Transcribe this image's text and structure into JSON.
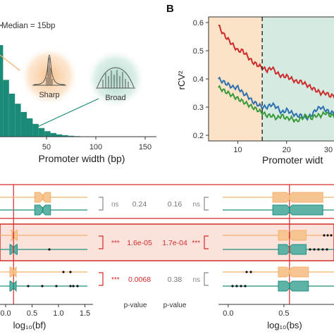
{
  "panels": {
    "b_label": "B"
  },
  "chart_data": [
    {
      "id": "promoter-width-histogram",
      "type": "bar",
      "xlabel": "Promoter width (bp)",
      "ylabel": "",
      "x_ticks": [
        "50",
        "100",
        "150"
      ],
      "xlim": [
        0,
        160
      ],
      "legend_text": "Median = 15bp",
      "annotations": [
        "Sharp",
        "Broad"
      ],
      "bins": [
        {
          "x": 0,
          "value": 1.0
        },
        {
          "x": 6,
          "value": 0.62
        },
        {
          "x": 12,
          "value": 0.47
        },
        {
          "x": 18,
          "value": 0.36
        },
        {
          "x": 24,
          "value": 0.27
        },
        {
          "x": 30,
          "value": 0.2
        },
        {
          "x": 36,
          "value": 0.14
        },
        {
          "x": 42,
          "value": 0.095
        },
        {
          "x": 48,
          "value": 0.06
        },
        {
          "x": 54,
          "value": 0.04
        },
        {
          "x": 60,
          "value": 0.025
        },
        {
          "x": 66,
          "value": 0.017
        },
        {
          "x": 72,
          "value": 0.01
        },
        {
          "x": 78,
          "value": 0.006
        },
        {
          "x": 84,
          "value": 0.004
        },
        {
          "x": 90,
          "value": 0.003
        },
        {
          "x": 96,
          "value": 0.002
        }
      ],
      "bar_color": "#1b8b78"
    },
    {
      "id": "rcv2-line",
      "type": "line",
      "xlabel": "Promoter widt",
      "ylabel": "rCV²",
      "x_ticks": [
        "10",
        "20",
        "30"
      ],
      "y_ticks": [
        "0.2",
        "0.3",
        "0.4",
        "0.5",
        "0.6"
      ],
      "xlim": [
        4,
        30
      ],
      "ylim": [
        0.18,
        0.62
      ],
      "threshold_x": 15,
      "regions": [
        {
          "from": 4,
          "to": 15,
          "color": "#fbe3c8"
        },
        {
          "from": 15,
          "to": 30,
          "color": "#d5ebe2"
        }
      ],
      "series": [
        {
          "color": "#cc2b2b",
          "x": [
            6,
            7,
            8,
            9,
            10,
            11,
            12,
            13,
            14,
            15,
            16,
            17,
            18,
            19,
            20,
            21,
            22,
            23,
            24,
            25,
            26,
            27,
            28,
            29,
            30
          ],
          "values": [
            0.59,
            0.56,
            0.54,
            0.52,
            0.5,
            0.5,
            0.48,
            0.46,
            0.45,
            0.44,
            0.43,
            0.44,
            0.42,
            0.41,
            0.41,
            0.4,
            0.39,
            0.39,
            0.38,
            0.37,
            0.36,
            0.35,
            0.35,
            0.34,
            0.34
          ]
        },
        {
          "color": "#2e6fad",
          "x": [
            6,
            7,
            8,
            9,
            10,
            11,
            12,
            13,
            14,
            15,
            16,
            17,
            18,
            19,
            20,
            21,
            22,
            23,
            24,
            25,
            26,
            27,
            28,
            29,
            30
          ],
          "values": [
            0.4,
            0.39,
            0.38,
            0.37,
            0.37,
            0.35,
            0.34,
            0.32,
            0.31,
            0.3,
            0.3,
            0.31,
            0.3,
            0.28,
            0.29,
            0.28,
            0.27,
            0.27,
            0.26,
            0.27,
            0.29,
            0.3,
            0.29,
            0.28,
            0.28
          ]
        },
        {
          "color": "#3a9a3a",
          "x": [
            6,
            7,
            8,
            9,
            10,
            11,
            12,
            13,
            14,
            15,
            16,
            17,
            18,
            19,
            20,
            21,
            22,
            23,
            24,
            25,
            26,
            27,
            28,
            29,
            30
          ],
          "values": [
            0.37,
            0.36,
            0.35,
            0.34,
            0.33,
            0.32,
            0.31,
            0.3,
            0.29,
            0.28,
            0.27,
            0.27,
            0.26,
            0.27,
            0.26,
            0.26,
            0.25,
            0.26,
            0.27,
            0.26,
            0.27,
            0.27,
            0.28,
            0.27,
            0.27
          ]
        }
      ]
    },
    {
      "id": "boxplots-bf",
      "type": "box",
      "xlabel": "log₁₀(bf)",
      "x_ticks": [
        "0.0",
        "0.5",
        "1.0",
        "1.5"
      ],
      "xlim": [
        0,
        1.6
      ],
      "median_line_x": 0.15,
      "rows": [
        {
          "sharp": {
            "q1": 0.55,
            "median": 0.7,
            "q3": 0.85
          },
          "broad": {
            "q1": 0.55,
            "median": 0.7,
            "q3": 0.85
          }
        },
        {
          "sharp": {
            "q1": 0.12,
            "median": 0.15,
            "q3": 0.22
          },
          "broad": {
            "q1": 0.08,
            "median": 0.15,
            "q3": 0.22
          }
        },
        {
          "sharp": {
            "q1": 0.08,
            "median": 0.15,
            "q3": 0.2
          },
          "broad": {
            "q1": 0.08,
            "median": 0.15,
            "q3": 0.2
          }
        }
      ],
      "pvalues": [
        "0.24",
        "1.6e-05",
        "0.0068"
      ],
      "significance": [
        "ns",
        "***",
        "***"
      ],
      "pvalue_label": "p-value"
    },
    {
      "id": "boxplots-bs",
      "type": "box",
      "xlabel": "log₁₀(bs)",
      "x_ticks": [
        "0.0",
        "0.5"
      ],
      "xlim": [
        -0.05,
        0.95
      ],
      "median_line_x": 0.55,
      "rows": [
        {
          "sharp": {
            "q1": 0.4,
            "median": 0.55,
            "q3": 0.85
          },
          "broad": {
            "q1": 0.4,
            "median": 0.55,
            "q3": 0.85
          }
        },
        {
          "sharp": {
            "q1": 0.45,
            "median": 0.55,
            "q3": 0.7
          },
          "broad": {
            "q1": 0.45,
            "median": 0.55,
            "q3": 0.7
          }
        },
        {
          "sharp": {
            "q1": 0.45,
            "median": 0.55,
            "q3": 0.72
          },
          "broad": {
            "q1": 0.45,
            "median": 0.55,
            "q3": 0.72
          }
        }
      ],
      "pvalues": [
        "0.16",
        "1.7e-04",
        "0.38"
      ],
      "significance": [
        "ns",
        "***",
        "ns"
      ],
      "pvalue_label": "p-value"
    }
  ],
  "colors": {
    "sharp": "#f4b06a",
    "sharp_fill": "#f7c592",
    "broad": "#1f8f80",
    "broad_fill": "#5fb3a6",
    "highlight_red": "#d42b2b",
    "highlight_fill": "#fbe3dc"
  }
}
